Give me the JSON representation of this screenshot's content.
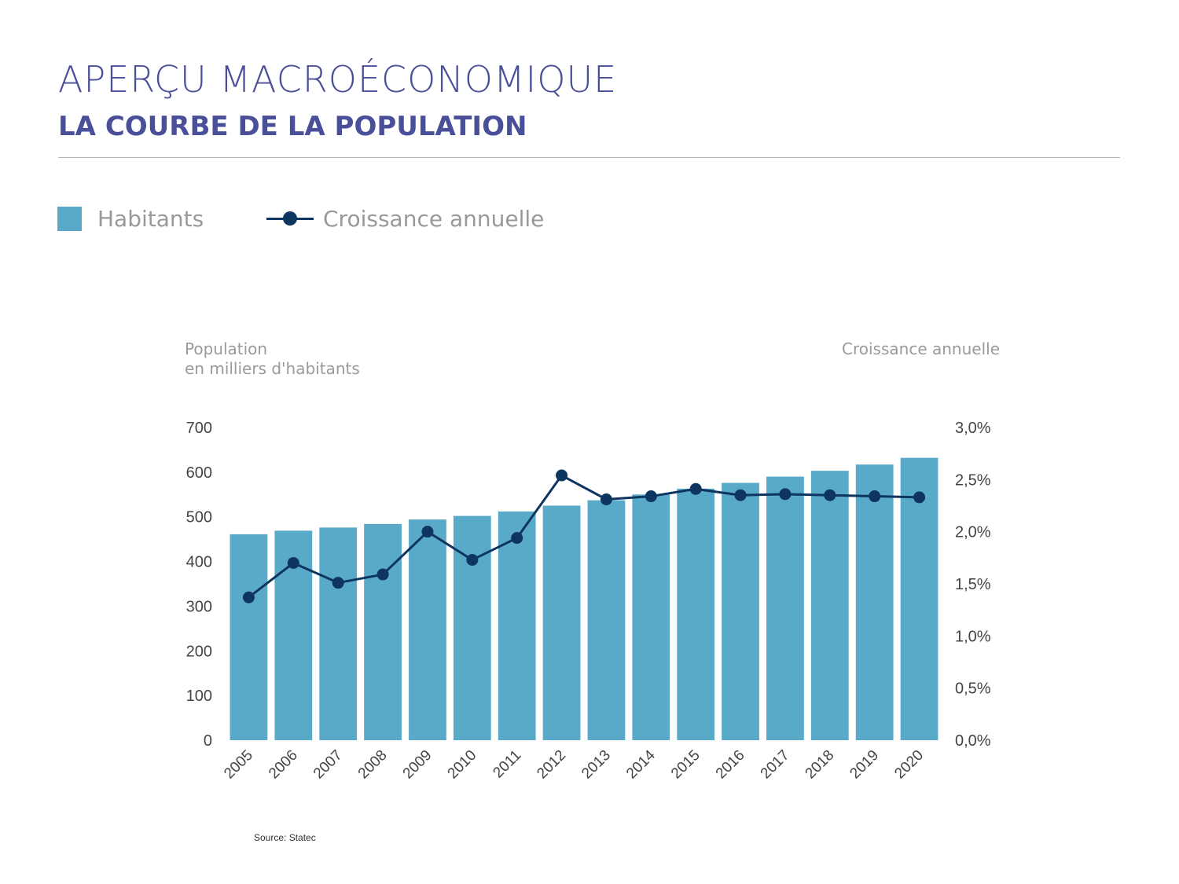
{
  "header": {
    "title": "APERÇU MACROÉCONOMIQUE",
    "subtitle": "LA COURBE DE LA POPULATION"
  },
  "legend": {
    "bars_label": "Habitants",
    "line_label": "Croissance annuelle"
  },
  "source": "Source: Statec",
  "colors": {
    "bar": "#59aac8",
    "line": "#0e3460",
    "heading": "#4a4f9a"
  },
  "chart_data": {
    "type": "bar+line",
    "categories": [
      "2005",
      "2006",
      "2007",
      "2008",
      "2009",
      "2010",
      "2011",
      "2012",
      "2013",
      "2014",
      "2015",
      "2016",
      "2017",
      "2018",
      "2019",
      "2020"
    ],
    "series": [
      {
        "name": "Habitants",
        "type": "bar",
        "axis": "left",
        "values": [
          461,
          469,
          476,
          484,
          494,
          502,
          512,
          525,
          537,
          550,
          563,
          576,
          590,
          603,
          617,
          632
        ]
      },
      {
        "name": "Croissance annuelle",
        "type": "line",
        "axis": "right",
        "values": [
          1.37,
          1.7,
          1.51,
          1.59,
          2.0,
          1.73,
          1.94,
          2.54,
          2.31,
          2.34,
          2.41,
          2.35,
          2.36,
          2.35,
          2.34,
          2.33
        ]
      }
    ],
    "ylabel_left_line1": "Population",
    "ylabel_left_line2": "en milliers d'habitants",
    "ylabel_right": "Croissance annuelle",
    "ylim_left": [
      0,
      700
    ],
    "ylim_right": [
      0,
      3.0
    ],
    "left_ticks": [
      "0",
      "100",
      "200",
      "300",
      "400",
      "500",
      "600",
      "700"
    ],
    "right_ticks": [
      "0,0%",
      "0,5%",
      "1,0%",
      "1,5%",
      "2,0%",
      "2,5%",
      "3,0%"
    ],
    "grid": false,
    "legend_position": "top-left"
  }
}
